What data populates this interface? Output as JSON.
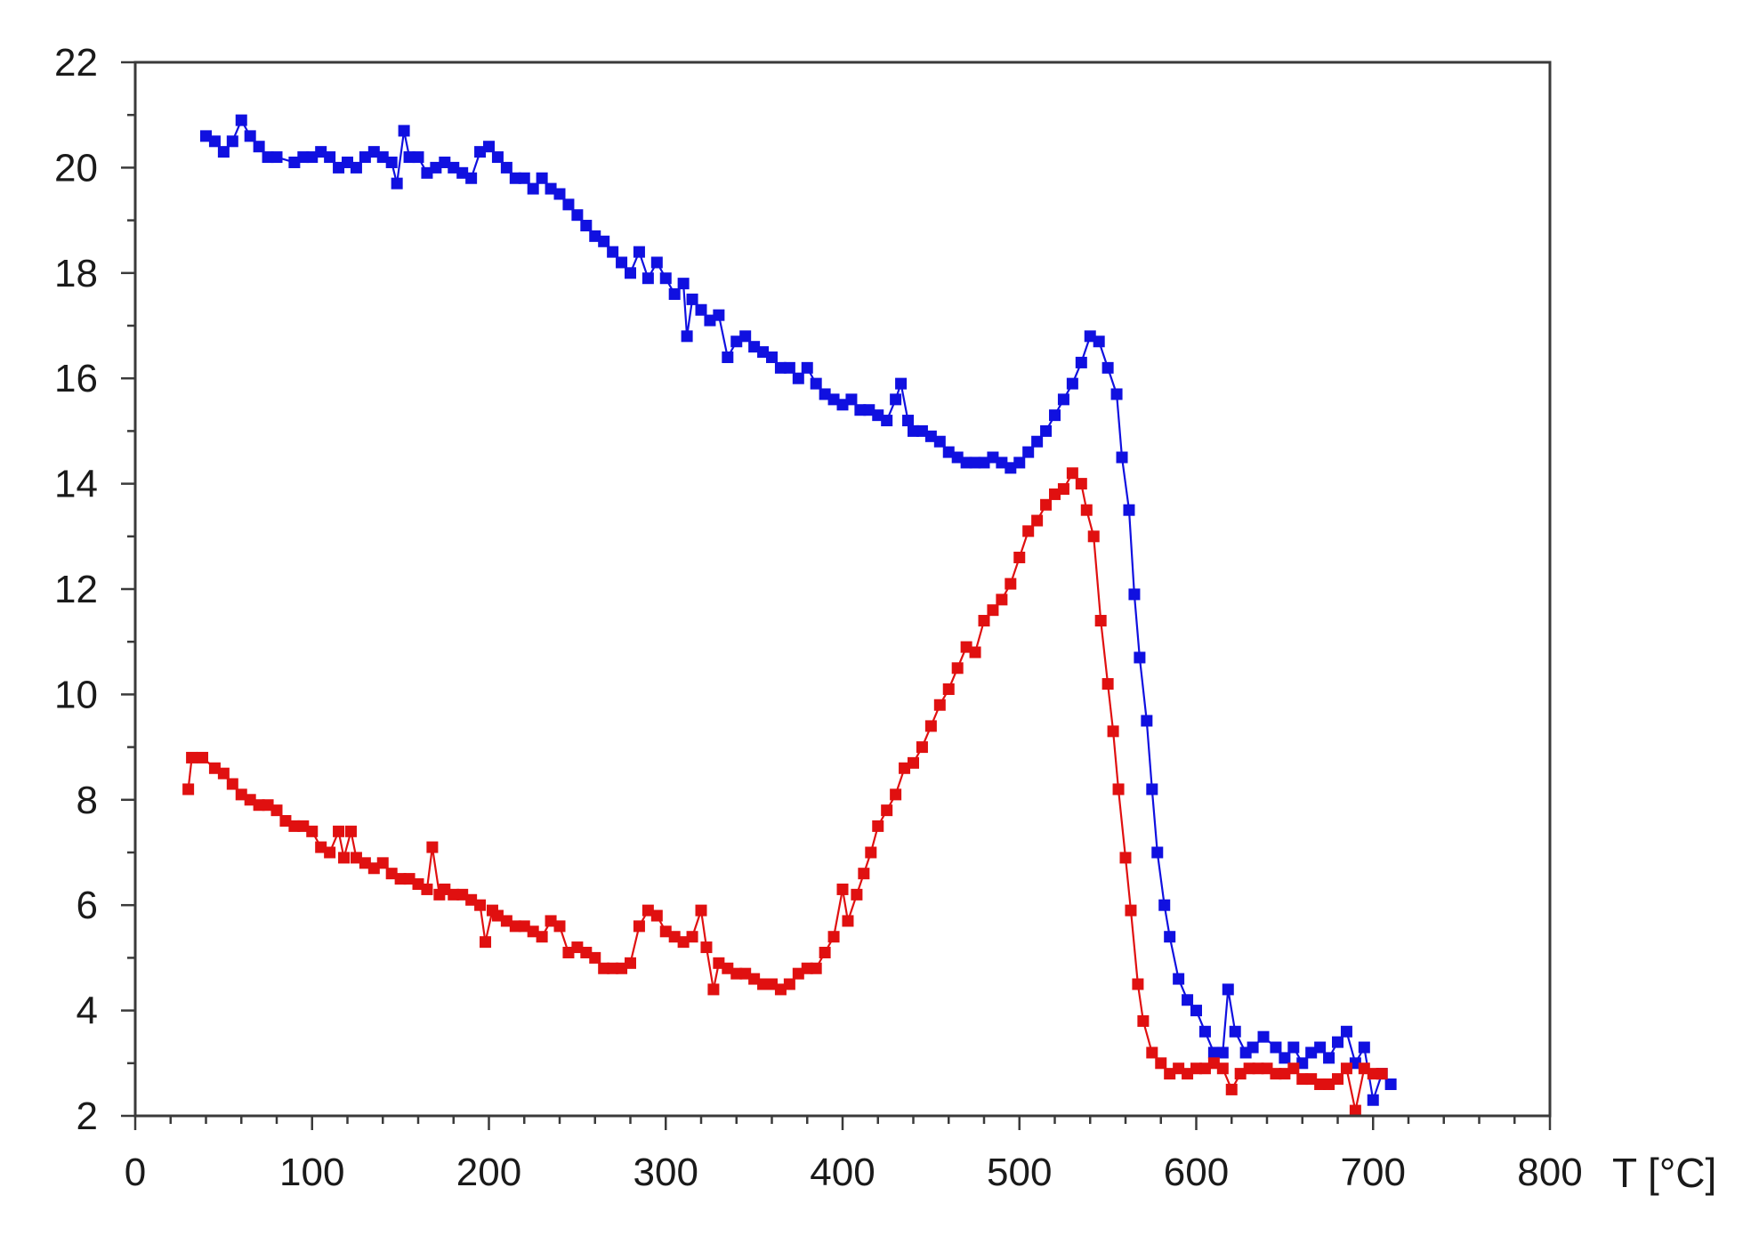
{
  "chart_data": {
    "type": "line",
    "xlabel": "T [°C]",
    "ylabel": "",
    "xlim": [
      0,
      800
    ],
    "ylim": [
      2,
      22
    ],
    "xticks": [
      0,
      100,
      200,
      300,
      400,
      500,
      600,
      700,
      800
    ],
    "yticks": [
      2,
      4,
      6,
      8,
      10,
      12,
      14,
      16,
      18,
      20,
      22
    ],
    "grid": false,
    "legend": "none",
    "marker": "square",
    "series": [
      {
        "color": "#1010e0",
        "points": [
          [
            40,
            20.6
          ],
          [
            45,
            20.5
          ],
          [
            50,
            20.3
          ],
          [
            55,
            20.5
          ],
          [
            60,
            20.9
          ],
          [
            65,
            20.6
          ],
          [
            70,
            20.4
          ],
          [
            75,
            20.2
          ],
          [
            80,
            20.2
          ],
          [
            90,
            20.1
          ],
          [
            95,
            20.2
          ],
          [
            100,
            20.2
          ],
          [
            105,
            20.3
          ],
          [
            110,
            20.2
          ],
          [
            115,
            20.0
          ],
          [
            120,
            20.1
          ],
          [
            125,
            20.0
          ],
          [
            130,
            20.2
          ],
          [
            135,
            20.3
          ],
          [
            140,
            20.2
          ],
          [
            145,
            20.1
          ],
          [
            148,
            19.7
          ],
          [
            152,
            20.7
          ],
          [
            155,
            20.2
          ],
          [
            160,
            20.2
          ],
          [
            165,
            19.9
          ],
          [
            170,
            20.0
          ],
          [
            175,
            20.1
          ],
          [
            180,
            20.0
          ],
          [
            185,
            19.9
          ],
          [
            190,
            19.8
          ],
          [
            195,
            20.3
          ],
          [
            200,
            20.4
          ],
          [
            205,
            20.2
          ],
          [
            210,
            20.0
          ],
          [
            215,
            19.8
          ],
          [
            220,
            19.8
          ],
          [
            225,
            19.6
          ],
          [
            230,
            19.8
          ],
          [
            235,
            19.6
          ],
          [
            240,
            19.5
          ],
          [
            245,
            19.3
          ],
          [
            250,
            19.1
          ],
          [
            255,
            18.9
          ],
          [
            260,
            18.7
          ],
          [
            265,
            18.6
          ],
          [
            270,
            18.4
          ],
          [
            275,
            18.2
          ],
          [
            280,
            18.0
          ],
          [
            285,
            18.4
          ],
          [
            290,
            17.9
          ],
          [
            295,
            18.2
          ],
          [
            300,
            17.9
          ],
          [
            305,
            17.6
          ],
          [
            310,
            17.8
          ],
          [
            312,
            16.8
          ],
          [
            315,
            17.5
          ],
          [
            320,
            17.3
          ],
          [
            325,
            17.1
          ],
          [
            330,
            17.2
          ],
          [
            335,
            16.4
          ],
          [
            340,
            16.7
          ],
          [
            345,
            16.8
          ],
          [
            350,
            16.6
          ],
          [
            355,
            16.5
          ],
          [
            360,
            16.4
          ],
          [
            365,
            16.2
          ],
          [
            370,
            16.2
          ],
          [
            375,
            16.0
          ],
          [
            380,
            16.2
          ],
          [
            385,
            15.9
          ],
          [
            390,
            15.7
          ],
          [
            395,
            15.6
          ],
          [
            400,
            15.5
          ],
          [
            405,
            15.6
          ],
          [
            410,
            15.4
          ],
          [
            415,
            15.4
          ],
          [
            420,
            15.3
          ],
          [
            425,
            15.2
          ],
          [
            430,
            15.6
          ],
          [
            433,
            15.9
          ],
          [
            437,
            15.2
          ],
          [
            440,
            15.0
          ],
          [
            445,
            15.0
          ],
          [
            450,
            14.9
          ],
          [
            455,
            14.8
          ],
          [
            460,
            14.6
          ],
          [
            465,
            14.5
          ],
          [
            470,
            14.4
          ],
          [
            475,
            14.4
          ],
          [
            480,
            14.4
          ],
          [
            485,
            14.5
          ],
          [
            490,
            14.4
          ],
          [
            495,
            14.3
          ],
          [
            500,
            14.4
          ],
          [
            505,
            14.6
          ],
          [
            510,
            14.8
          ],
          [
            515,
            15.0
          ],
          [
            520,
            15.3
          ],
          [
            525,
            15.6
          ],
          [
            530,
            15.9
          ],
          [
            535,
            16.3
          ],
          [
            540,
            16.8
          ],
          [
            545,
            16.7
          ],
          [
            550,
            16.2
          ],
          [
            555,
            15.7
          ],
          [
            558,
            14.5
          ],
          [
            562,
            13.5
          ],
          [
            565,
            11.9
          ],
          [
            568,
            10.7
          ],
          [
            572,
            9.5
          ],
          [
            575,
            8.2
          ],
          [
            578,
            7.0
          ],
          [
            582,
            6.0
          ],
          [
            585,
            5.4
          ],
          [
            590,
            4.6
          ],
          [
            595,
            4.2
          ],
          [
            600,
            4.0
          ],
          [
            605,
            3.6
          ],
          [
            610,
            3.2
          ],
          [
            615,
            3.2
          ],
          [
            618,
            4.4
          ],
          [
            622,
            3.6
          ],
          [
            628,
            3.2
          ],
          [
            632,
            3.3
          ],
          [
            638,
            3.5
          ],
          [
            645,
            3.3
          ],
          [
            650,
            3.1
          ],
          [
            655,
            3.3
          ],
          [
            660,
            3.0
          ],
          [
            665,
            3.2
          ],
          [
            670,
            3.3
          ],
          [
            675,
            3.1
          ],
          [
            680,
            3.4
          ],
          [
            685,
            3.6
          ],
          [
            690,
            3.0
          ],
          [
            695,
            3.3
          ],
          [
            700,
            2.3
          ],
          [
            705,
            2.8
          ],
          [
            710,
            2.6
          ]
        ]
      },
      {
        "color": "#e01010",
        "points": [
          [
            30,
            8.2
          ],
          [
            32,
            8.8
          ],
          [
            38,
            8.8
          ],
          [
            45,
            8.6
          ],
          [
            50,
            8.5
          ],
          [
            55,
            8.3
          ],
          [
            60,
            8.1
          ],
          [
            65,
            8.0
          ],
          [
            70,
            7.9
          ],
          [
            75,
            7.9
          ],
          [
            80,
            7.8
          ],
          [
            85,
            7.6
          ],
          [
            90,
            7.5
          ],
          [
            95,
            7.5
          ],
          [
            100,
            7.4
          ],
          [
            105,
            7.1
          ],
          [
            110,
            7.0
          ],
          [
            115,
            7.4
          ],
          [
            118,
            6.9
          ],
          [
            122,
            7.4
          ],
          [
            125,
            6.9
          ],
          [
            130,
            6.8
          ],
          [
            135,
            6.7
          ],
          [
            140,
            6.8
          ],
          [
            145,
            6.6
          ],
          [
            150,
            6.5
          ],
          [
            155,
            6.5
          ],
          [
            160,
            6.4
          ],
          [
            165,
            6.3
          ],
          [
            168,
            7.1
          ],
          [
            172,
            6.2
          ],
          [
            175,
            6.3
          ],
          [
            180,
            6.2
          ],
          [
            185,
            6.2
          ],
          [
            190,
            6.1
          ],
          [
            195,
            6.0
          ],
          [
            198,
            5.3
          ],
          [
            202,
            5.9
          ],
          [
            205,
            5.8
          ],
          [
            210,
            5.7
          ],
          [
            215,
            5.6
          ],
          [
            220,
            5.6
          ],
          [
            225,
            5.5
          ],
          [
            230,
            5.4
          ],
          [
            235,
            5.7
          ],
          [
            240,
            5.6
          ],
          [
            245,
            5.1
          ],
          [
            250,
            5.2
          ],
          [
            255,
            5.1
          ],
          [
            260,
            5.0
          ],
          [
            265,
            4.8
          ],
          [
            270,
            4.8
          ],
          [
            275,
            4.8
          ],
          [
            280,
            4.9
          ],
          [
            285,
            5.6
          ],
          [
            290,
            5.9
          ],
          [
            295,
            5.8
          ],
          [
            300,
            5.5
          ],
          [
            305,
            5.4
          ],
          [
            310,
            5.3
          ],
          [
            315,
            5.4
          ],
          [
            320,
            5.9
          ],
          [
            323,
            5.2
          ],
          [
            327,
            4.4
          ],
          [
            330,
            4.9
          ],
          [
            335,
            4.8
          ],
          [
            340,
            4.7
          ],
          [
            345,
            4.7
          ],
          [
            350,
            4.6
          ],
          [
            355,
            4.5
          ],
          [
            360,
            4.5
          ],
          [
            365,
            4.4
          ],
          [
            370,
            4.5
          ],
          [
            375,
            4.7
          ],
          [
            380,
            4.8
          ],
          [
            385,
            4.8
          ],
          [
            390,
            5.1
          ],
          [
            395,
            5.4
          ],
          [
            400,
            6.3
          ],
          [
            403,
            5.7
          ],
          [
            408,
            6.2
          ],
          [
            412,
            6.6
          ],
          [
            416,
            7.0
          ],
          [
            420,
            7.5
          ],
          [
            425,
            7.8
          ],
          [
            430,
            8.1
          ],
          [
            435,
            8.6
          ],
          [
            440,
            8.7
          ],
          [
            445,
            9.0
          ],
          [
            450,
            9.4
          ],
          [
            455,
            9.8
          ],
          [
            460,
            10.1
          ],
          [
            465,
            10.5
          ],
          [
            470,
            10.9
          ],
          [
            475,
            10.8
          ],
          [
            480,
            11.4
          ],
          [
            485,
            11.6
          ],
          [
            490,
            11.8
          ],
          [
            495,
            12.1
          ],
          [
            500,
            12.6
          ],
          [
            505,
            13.1
          ],
          [
            510,
            13.3
          ],
          [
            515,
            13.6
          ],
          [
            520,
            13.8
          ],
          [
            525,
            13.9
          ],
          [
            530,
            14.2
          ],
          [
            535,
            14.0
          ],
          [
            538,
            13.5
          ],
          [
            542,
            13.0
          ],
          [
            546,
            11.4
          ],
          [
            550,
            10.2
          ],
          [
            553,
            9.3
          ],
          [
            556,
            8.2
          ],
          [
            560,
            6.9
          ],
          [
            563,
            5.9
          ],
          [
            567,
            4.5
          ],
          [
            570,
            3.8
          ],
          [
            575,
            3.2
          ],
          [
            580,
            3.0
          ],
          [
            585,
            2.8
          ],
          [
            590,
            2.9
          ],
          [
            595,
            2.8
          ],
          [
            600,
            2.9
          ],
          [
            605,
            2.9
          ],
          [
            610,
            3.0
          ],
          [
            615,
            2.9
          ],
          [
            620,
            2.5
          ],
          [
            625,
            2.8
          ],
          [
            630,
            2.9
          ],
          [
            635,
            2.9
          ],
          [
            640,
            2.9
          ],
          [
            645,
            2.8
          ],
          [
            650,
            2.8
          ],
          [
            655,
            2.9
          ],
          [
            660,
            2.7
          ],
          [
            665,
            2.7
          ],
          [
            670,
            2.6
          ],
          [
            675,
            2.6
          ],
          [
            680,
            2.7
          ],
          [
            685,
            2.9
          ],
          [
            690,
            2.1
          ],
          [
            695,
            2.9
          ],
          [
            700,
            2.8
          ],
          [
            705,
            2.8
          ]
        ]
      }
    ]
  }
}
